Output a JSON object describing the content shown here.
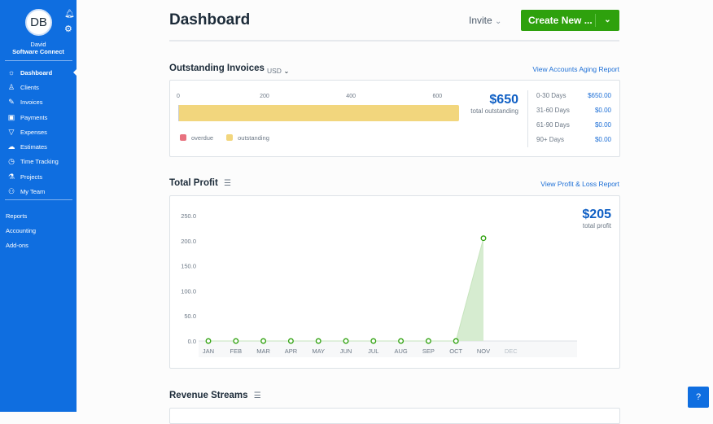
{
  "sidebar": {
    "avatar_initials": "DB",
    "user_name": "David",
    "company": "Software Connect",
    "items": [
      {
        "label": "Dashboard",
        "icon": "sun-icon"
      },
      {
        "label": "Clients",
        "icon": "client-icon"
      },
      {
        "label": "Invoices",
        "icon": "invoice-icon"
      },
      {
        "label": "Payments",
        "icon": "wallet-icon"
      },
      {
        "label": "Expenses",
        "icon": "pizza-icon"
      },
      {
        "label": "Estimates",
        "icon": "cloud-icon"
      },
      {
        "label": "Time Tracking",
        "icon": "stopwatch-icon"
      },
      {
        "label": "Projects",
        "icon": "flask-icon"
      },
      {
        "label": "My Team",
        "icon": "team-icon"
      }
    ],
    "secondary": [
      "Reports",
      "Accounting",
      "Add-ons"
    ]
  },
  "header": {
    "title": "Dashboard",
    "invite": "Invite",
    "create": "Create New ..."
  },
  "invoices": {
    "title": "Outstanding Invoices",
    "currency": "USD",
    "link": "View Accounts Aging Report",
    "axis_ticks": [
      "0",
      "200",
      "400",
      "600"
    ],
    "outstanding_value": 650,
    "axis_max": 650,
    "total": "$650",
    "total_label": "total outstanding",
    "legend": [
      {
        "label": "overdue",
        "color": "#e8727f"
      },
      {
        "label": "outstanding",
        "color": "#f2d67d"
      }
    ],
    "aging": [
      {
        "label": "0-30 Days",
        "value": "$650.00"
      },
      {
        "label": "31-60 Days",
        "value": "$0.00"
      },
      {
        "label": "61-90 Days",
        "value": "$0.00"
      },
      {
        "label": "90+ Days",
        "value": "$0.00"
      }
    ]
  },
  "profit": {
    "title": "Total Profit",
    "link": "View Profit & Loss Report",
    "total": "$205",
    "total_label": "total profit"
  },
  "chart_data": {
    "type": "area",
    "categories": [
      "JAN",
      "FEB",
      "MAR",
      "APR",
      "MAY",
      "JUN",
      "JUL",
      "AUG",
      "SEP",
      "OCT",
      "NOV",
      "DEC"
    ],
    "values": [
      0,
      0,
      0,
      0,
      0,
      0,
      0,
      0,
      0,
      0,
      205,
      null
    ],
    "yticks": [
      "0.0",
      "50.0",
      "100.0",
      "150.0",
      "200.0",
      "250.0"
    ],
    "ylim": [
      0,
      250
    ],
    "color": "#2ea10d"
  },
  "revenue": {
    "title": "Revenue Streams"
  }
}
